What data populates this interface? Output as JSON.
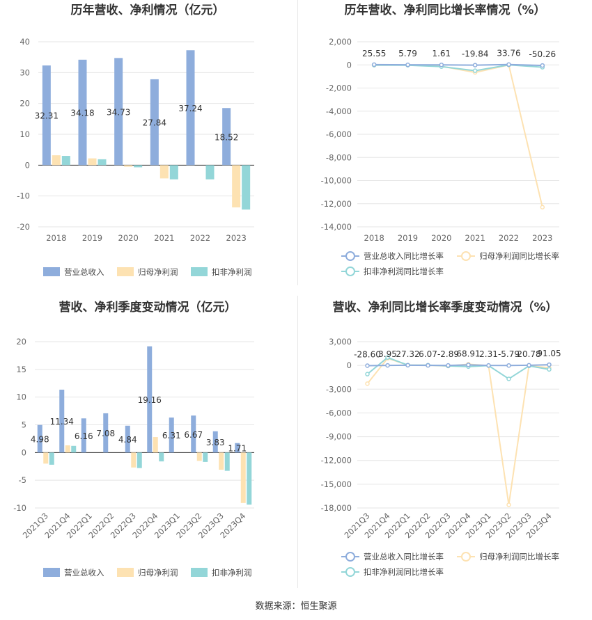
{
  "colors": {
    "revenue": "#8eaddc",
    "parent": "#fde2b2",
    "deducted": "#93d6d8",
    "axis": "#333333",
    "grid": "#e5e5e5"
  },
  "legend": {
    "bar": [
      "营业总收入",
      "归母净利润",
      "扣非净利润"
    ],
    "line": [
      "营业总收入同比增长率",
      "归母净利润同比增长率",
      "扣非净利润同比增长率"
    ]
  },
  "source": "数据来源：恒生聚源",
  "chart_data": [
    {
      "type": "bar",
      "title": "历年营收、净利情况（亿元）",
      "categories": [
        "2018",
        "2019",
        "2020",
        "2021",
        "2022",
        "2023"
      ],
      "series": [
        {
          "name": "营业总收入",
          "values": [
            32.31,
            34.18,
            34.73,
            27.84,
            37.24,
            18.52
          ]
        },
        {
          "name": "归母净利润",
          "values": [
            3.2,
            2.2,
            -0.5,
            -4.3,
            0.0,
            -13.7
          ]
        },
        {
          "name": "扣非净利润",
          "values": [
            3.0,
            1.9,
            -0.7,
            -4.6,
            -4.6,
            -14.4
          ]
        }
      ],
      "labels": [
        "32.31",
        "34.18",
        "34.73",
        "27.84",
        "37.24",
        "18.52"
      ],
      "ylim": [
        -20,
        40
      ],
      "yticks": [
        40,
        30,
        20,
        10,
        0,
        -10,
        -20
      ],
      "grid": true,
      "legend_position": "bottom"
    },
    {
      "type": "line",
      "title": "历年营收、净利同比增长率情况（%）",
      "categories": [
        "2018",
        "2019",
        "2020",
        "2021",
        "2022",
        "2023"
      ],
      "series": [
        {
          "name": "营业总收入同比增长率",
          "values": [
            25.55,
            5.79,
            1.61,
            -19.84,
            33.76,
            -50.26
          ]
        },
        {
          "name": "归母净利润同比增长率",
          "values": [
            -30,
            -10,
            -120,
            -650,
            -10,
            -12300
          ]
        },
        {
          "name": "扣非净利润同比增长率",
          "values": [
            -20,
            -30,
            -150,
            -500,
            0,
            -200
          ]
        }
      ],
      "labels": [
        "25.55",
        "5.79",
        "1.61",
        "-19.84",
        "33.76",
        "-50.26"
      ],
      "ylim": [
        -14000,
        2000
      ],
      "yticks": [
        "2,000",
        "0",
        "-2,000",
        "-4,000",
        "-6,000",
        "-8,000",
        "-10,000",
        "-12,000",
        "-14,000"
      ],
      "ytick_values": [
        2000,
        0,
        -2000,
        -4000,
        -6000,
        -8000,
        -10000,
        -12000,
        -14000
      ],
      "grid": true,
      "legend_position": "bottom"
    },
    {
      "type": "bar",
      "title": "营收、净利季度变动情况（亿元）",
      "categories": [
        "2021Q3",
        "2021Q4",
        "2022Q1",
        "2022Q2",
        "2022Q3",
        "2022Q4",
        "2023Q1",
        "2023Q2",
        "2023Q3",
        "2023Q4"
      ],
      "series": [
        {
          "name": "营业总收入",
          "values": [
            4.98,
            11.34,
            6.16,
            7.08,
            4.84,
            19.16,
            6.31,
            6.67,
            3.83,
            1.71
          ]
        },
        {
          "name": "归母净利润",
          "values": [
            -2.0,
            1.3,
            0.0,
            0.0,
            -2.7,
            2.8,
            0.0,
            -1.5,
            -3.1,
            -9.1
          ]
        },
        {
          "name": "扣非净利润",
          "values": [
            -2.2,
            1.2,
            0.0,
            0.0,
            -2.8,
            -1.6,
            0.0,
            -1.7,
            -3.3,
            -9.4
          ]
        }
      ],
      "labels": [
        "4.98",
        "11.34",
        "6.16",
        "7.08",
        "4.84",
        "19.16",
        "6.31",
        "6.67",
        "3.83",
        "1.71"
      ],
      "ylim": [
        -10,
        20
      ],
      "yticks": [
        20,
        15,
        10,
        5,
        0,
        -5,
        -10
      ],
      "grid": true,
      "legend_position": "bottom"
    },
    {
      "type": "line",
      "title": "营收、净利同比增长率季度变动情况（%）",
      "categories": [
        "2021Q3",
        "2021Q4",
        "2022Q1",
        "2022Q2",
        "2022Q3",
        "2022Q4",
        "2023Q1",
        "2023Q2",
        "2023Q3",
        "2023Q4"
      ],
      "series": [
        {
          "name": "营业总收入同比增长率",
          "values": [
            -28.6,
            3.95,
            27.32,
            6.07,
            -2.89,
            68.91,
            2.31,
            -5.79,
            20.78,
            91.05
          ]
        },
        {
          "name": "归母净利润同比增长率",
          "values": [
            -2300,
            900,
            50,
            20,
            -80,
            150,
            -30,
            -17600,
            -40,
            -300
          ]
        },
        {
          "name": "扣非净利润同比增长率",
          "values": [
            -1100,
            1000,
            40,
            30,
            -60,
            -150,
            -20,
            -1700,
            -60,
            -500
          ]
        }
      ],
      "labels": [
        "-28.60",
        "3.95",
        "27.32",
        "6.07",
        "-2.89",
        "68.91",
        "2.31",
        "-5.79",
        "20.78",
        "91.05"
      ],
      "ylim": [
        -18000,
        3000
      ],
      "yticks": [
        "3,000",
        "0",
        "-3,000",
        "-6,000",
        "-9,000",
        "-12,000",
        "-15,000",
        "-18,000"
      ],
      "ytick_values": [
        3000,
        0,
        -3000,
        -6000,
        -9000,
        -12000,
        -15000,
        -18000
      ],
      "grid": true,
      "legend_position": "bottom"
    }
  ]
}
